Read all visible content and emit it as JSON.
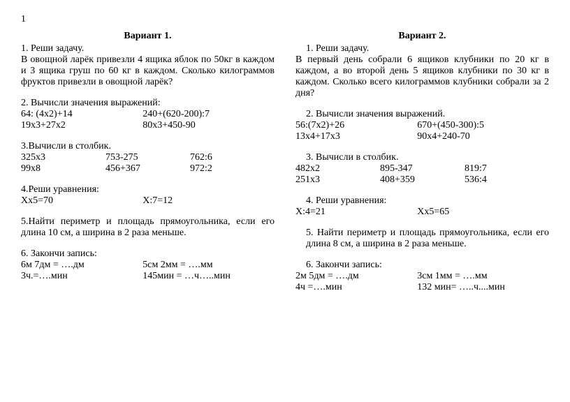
{
  "page_number": "1",
  "variant1": {
    "title": "Вариант 1.",
    "t1_head": "1. Реши задачу.",
    "t1_body": "В овощной ларёк привезли 4 ящика яблок по 50кг в каждом и 3 ящика груш по 60 кг в каждом. Сколько килограммов фруктов привезли в овощной ларёк?",
    "t2_head": "2. Вычисли значения выражений:",
    "t2_r1a": "64: (4х2)+14",
    "t2_r1b": "240+(620-200):7",
    "t2_r2a": "19х3+27х2",
    "t2_r2b": "80х3+450-90",
    "t3_head": "3.Вычисли в столбик.",
    "t3_r1a": "325х3",
    "t3_r1b": "753-275",
    "t3_r1c": "762:6",
    "t3_r2a": "99х8",
    "t3_r2b": "456+367",
    "t3_r2c": "972:2",
    "t4_head": "4.Реши уравнения:",
    "t4_a": "Хх5=70",
    "t4_b": "Х:7=12",
    "t5": "5.Найти периметр и площадь прямоугольника, если его длина 10 см, а ширина в 2 раза меньше.",
    "t6_head": "6. Закончи запись:",
    "t6_r1a": "6м 7дм = ….дм",
    "t6_r1b": "5см 2мм = ….мм",
    "t6_r2a": "3ч.=….мин",
    "t6_r2b": "145мин = …ч…..мин"
  },
  "variant2": {
    "title": "Вариант 2.",
    "t1_head": "1.  Реши задачу.",
    "t1_body": "В первый день собрали 6 ящиков клубники по 20 кг в каждом, а во второй день 5 ящиков клубники по 30 кг в каждом. Сколько всего килограммов клубники собрали за 2 дня?",
    "t2_head": "2.  Вычисли значения выражений.",
    "t2_r1a": "56:(7х2)+26",
    "t2_r1b": "670+(450-300):5",
    "t2_r2a": "13х4+17х3",
    "t2_r2b": "90х4+240-70",
    "t3_head": "3.  Вычисли в столбик.",
    "t3_r1a": "482х2",
    "t3_r1b": "895-347",
    "t3_r1c": "819:7",
    "t3_r2a": "251х3",
    "t3_r2b": "408+359",
    "t3_r2c": "536:4",
    "t4_head": "4.  Реши уравнения:",
    "t4_a": "Х:4=21",
    "t4_b": "Хх5=65",
    "t5": "5.  Найти периметр и площадь прямоугольника, если его длина 8 см, а ширина в 2 раза меньше.",
    "t6_head": "6.  Закончи запись:",
    "t6_r1a": "2м 5дм = ….дм",
    "t6_r1b": "3см 1мм = ….мм",
    "t6_r2a": "4ч =….мин",
    "t6_r2b": "132 мин= …..ч....мин"
  }
}
